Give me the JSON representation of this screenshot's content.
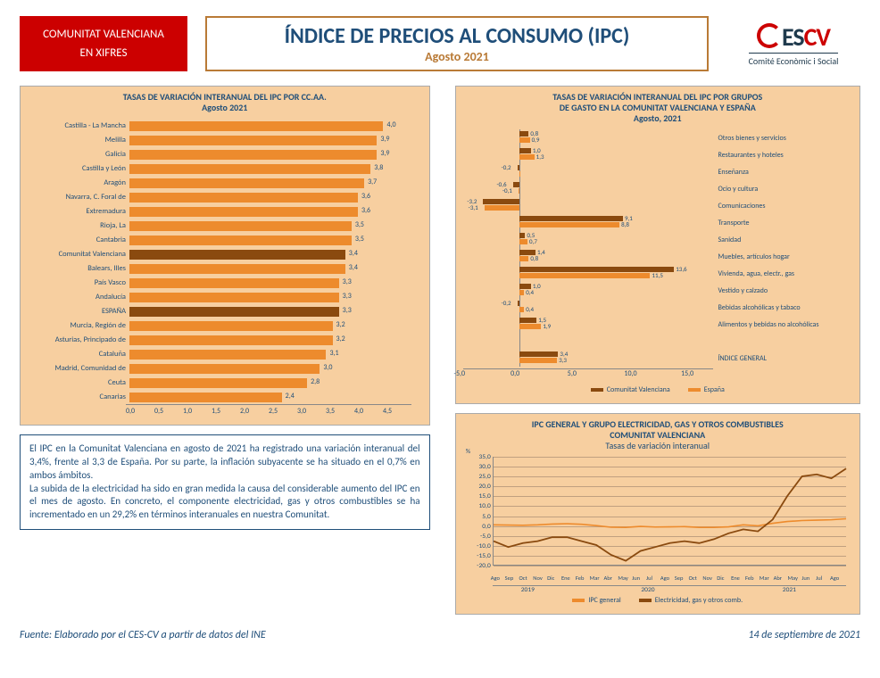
{
  "header": {
    "badge_line1": "COMUNITAT VALENCIANA",
    "badge_line2": "EN XIFRES",
    "title_main": "ÍNDICE DE PRECIOS AL CONSUMO (IPC)",
    "title_sub": "Agosto 2021",
    "logo_main_pre": "ES",
    "logo_main_cv": "CV",
    "logo_sub": "Comité Econòmic i Social"
  },
  "colors": {
    "red": "#cc0000",
    "border_brown": "#b97a36",
    "navy": "#1f4e79",
    "panel_bg": "#f7cfa0",
    "bar_orange": "#ed8b2d",
    "bar_dark": "#8a4a0f",
    "grid": "#c0a080"
  },
  "chart1": {
    "title_l1": "TASAS DE VARIACIÓN INTERANUAL DEL IPC POR CC.AA.",
    "title_l2": "Agosto 2021",
    "xmax": 4.5,
    "xticks": [
      "0,0",
      "0,5",
      "1,0",
      "1,5",
      "2,0",
      "2,5",
      "3,0",
      "3,5",
      "4,0",
      "4,5"
    ],
    "rows": [
      {
        "label": "Castilla - La Mancha",
        "value": 4.0,
        "display": "4,0",
        "dark": false
      },
      {
        "label": "Melilla",
        "value": 3.9,
        "display": "3,9",
        "dark": false
      },
      {
        "label": "Galicia",
        "value": 3.9,
        "display": "3,9",
        "dark": false
      },
      {
        "label": "Castilla y León",
        "value": 3.8,
        "display": "3,8",
        "dark": false
      },
      {
        "label": "Aragón",
        "value": 3.7,
        "display": "3,7",
        "dark": false
      },
      {
        "label": "Navarra, C. Foral de",
        "value": 3.6,
        "display": "3,6",
        "dark": false
      },
      {
        "label": "Extremadura",
        "value": 3.6,
        "display": "3,6",
        "dark": false
      },
      {
        "label": "Rioja, La",
        "value": 3.5,
        "display": "3,5",
        "dark": false
      },
      {
        "label": "Cantabria",
        "value": 3.5,
        "display": "3,5",
        "dark": false
      },
      {
        "label": "Comunitat Valenciana",
        "value": 3.4,
        "display": "3,4",
        "dark": true
      },
      {
        "label": "Balears, Illes",
        "value": 3.4,
        "display": "3,4",
        "dark": false
      },
      {
        "label": "País Vasco",
        "value": 3.3,
        "display": "3,3",
        "dark": false
      },
      {
        "label": "Andalucía",
        "value": 3.3,
        "display": "3,3",
        "dark": false
      },
      {
        "label": "ESPAÑA",
        "value": 3.3,
        "display": "3,3",
        "dark": true
      },
      {
        "label": "Murcia, Región de",
        "value": 3.2,
        "display": "3,2",
        "dark": false
      },
      {
        "label": "Asturias, Principado de",
        "value": 3.2,
        "display": "3,2",
        "dark": false
      },
      {
        "label": "Cataluña",
        "value": 3.1,
        "display": "3,1",
        "dark": false
      },
      {
        "label": "Madrid, Comunidad de",
        "value": 3.0,
        "display": "3,0",
        "dark": false
      },
      {
        "label": "Ceuta",
        "value": 2.8,
        "display": "2,8",
        "dark": false
      },
      {
        "label": "Canarias",
        "value": 2.4,
        "display": "2,4",
        "dark": false
      }
    ]
  },
  "chart2": {
    "title_l1": "TASAS DE VARIACIÓN INTERANUAL DEL IPC POR GRUPOS",
    "title_l2": "DE GASTO EN LA COMUNITAT VALENCIANA Y ESPAÑA",
    "title_l3": "Agosto, 2021",
    "xmin": -5.0,
    "xmax": 17.0,
    "xticks": [
      "-5,0",
      "0,0",
      "5,0",
      "10,0",
      "15,0"
    ],
    "xtick_vals": [
      -5,
      0,
      5,
      10,
      15
    ],
    "legend_cv": "Comunitat Valenciana",
    "legend_es": "España",
    "rows": [
      {
        "label": "Otros bienes y servicios",
        "cv": 0.8,
        "cv_d": "0,8",
        "es": 0.9,
        "es_d": "0,9"
      },
      {
        "label": "Restaurantes y hoteles",
        "cv": 1.0,
        "cv_d": "1,0",
        "es": 1.3,
        "es_d": "1,3"
      },
      {
        "label": "Enseñanza",
        "cv": -0.2,
        "cv_d": "-0,2",
        "es": 0.0,
        "es_d": ""
      },
      {
        "label": "Ocio y cultura",
        "cv": -0.6,
        "cv_d": "-0,6",
        "es": -0.1,
        "es_d": "-0,1"
      },
      {
        "label": "Comunicaciones",
        "cv": -3.2,
        "cv_d": "-3,2",
        "es": -3.1,
        "es_d": "-3,1"
      },
      {
        "label": "Transporte",
        "cv": 9.1,
        "cv_d": "9,1",
        "es": 8.8,
        "es_d": "8,8"
      },
      {
        "label": "Sanidad",
        "cv": 0.5,
        "cv_d": "0,5",
        "es": 0.7,
        "es_d": "0,7"
      },
      {
        "label": "Muebles, artículos hogar",
        "cv": 1.4,
        "cv_d": "1,4",
        "es": 0.8,
        "es_d": "0,8"
      },
      {
        "label": "Vivienda, agua, electr., gas",
        "cv": 13.6,
        "cv_d": "13,6",
        "es": 11.5,
        "es_d": "11,5"
      },
      {
        "label": "Vestido y calzado",
        "cv": 1.0,
        "cv_d": "1,0",
        "es": 0.4,
        "es_d": "0,4"
      },
      {
        "label": "Bebidas alcohólicas y tabaco",
        "cv": -0.2,
        "cv_d": "-0,2",
        "es": 0.4,
        "es_d": "0,4"
      },
      {
        "label": "Alimentos y bebidas no alcohólicas",
        "cv": 1.5,
        "cv_d": "1,5",
        "es": 1.9,
        "es_d": "1,9"
      },
      {
        "label": "",
        "cv": null,
        "es": null
      },
      {
        "label": "ÍNDICE GENERAL",
        "cv": 3.4,
        "cv_d": "3,4",
        "es": 3.3,
        "es_d": "3,3"
      }
    ]
  },
  "chart3": {
    "title_l1": "IPC GENERAL Y GRUPO ELECTRICIDAD, GAS Y OTROS COMBUSTIBLES",
    "title_l2": "COMUNITAT VALENCIANA",
    "title_l3": "Tasas de variación interanual",
    "y_unit": "%",
    "ymin": -20,
    "ymax": 35,
    "yticks": [
      -20,
      -15,
      -10,
      -5,
      0,
      5,
      10,
      15,
      20,
      25,
      30,
      35
    ],
    "ytick_labels": [
      "-20,0",
      "-15,0",
      "-10,0",
      "-5,0",
      "0,0",
      "5,0",
      "10,0",
      "15,0",
      "20,0",
      "25,0",
      "30,0",
      "35,0"
    ],
    "months": [
      "Ago",
      "Sep",
      "Oct",
      "Nov",
      "Dic",
      "Ene",
      "Feb",
      "Mar",
      "Abr",
      "May",
      "Jun",
      "Jul",
      "Ago",
      "Sep",
      "Oct",
      "Nov",
      "Dic",
      "Ene",
      "Feb",
      "Mar",
      "Abr",
      "May",
      "Jun",
      "Jul",
      "Ago"
    ],
    "years": [
      {
        "label": "2019",
        "span": 5
      },
      {
        "label": "2020",
        "span": 12
      },
      {
        "label": "2021",
        "span": 8
      }
    ],
    "series_general": [
      0.3,
      0.2,
      0.1,
      0.3,
      0.7,
      0.9,
      0.6,
      -0.1,
      -0.9,
      -1.0,
      -0.5,
      -0.8,
      -0.7,
      -0.6,
      -1.0,
      -1.0,
      -0.7,
      0.3,
      -0.2,
      1.1,
      2.0,
      2.5,
      2.7,
      2.9,
      3.4
    ],
    "series_elec": [
      -8,
      -11,
      -9,
      -8,
      -6,
      -6,
      -8,
      -10,
      -15,
      -18,
      -13,
      -11,
      -9,
      -8,
      -9,
      -7,
      -4,
      -2,
      -3,
      3,
      15,
      25,
      26,
      24,
      29
    ],
    "legend_general": "IPC general",
    "legend_elec": "Electricidad, gas y otros comb."
  },
  "text_panel": "El IPC en la Comunitat Valenciana en agosto de 2021 ha registrado una variación interanual del 3,4%, frente al 3,3 de España. Por su parte, la inflación subyacente se ha situado en el 0,7% en ambos ámbitos.\nLa subida de la electricidad ha sido en gran medida la causa del considerable aumento del IPC en el mes de agosto. En concreto, el componente electricidad, gas y otros combustibles se ha incrementado en un 29,2% en términos interanuales en nuestra Comunitat.",
  "footer": {
    "source": "Fuente: Elaborado por el CES-CV a partir de datos del INE",
    "date": "14 de septiembre de 2021"
  }
}
